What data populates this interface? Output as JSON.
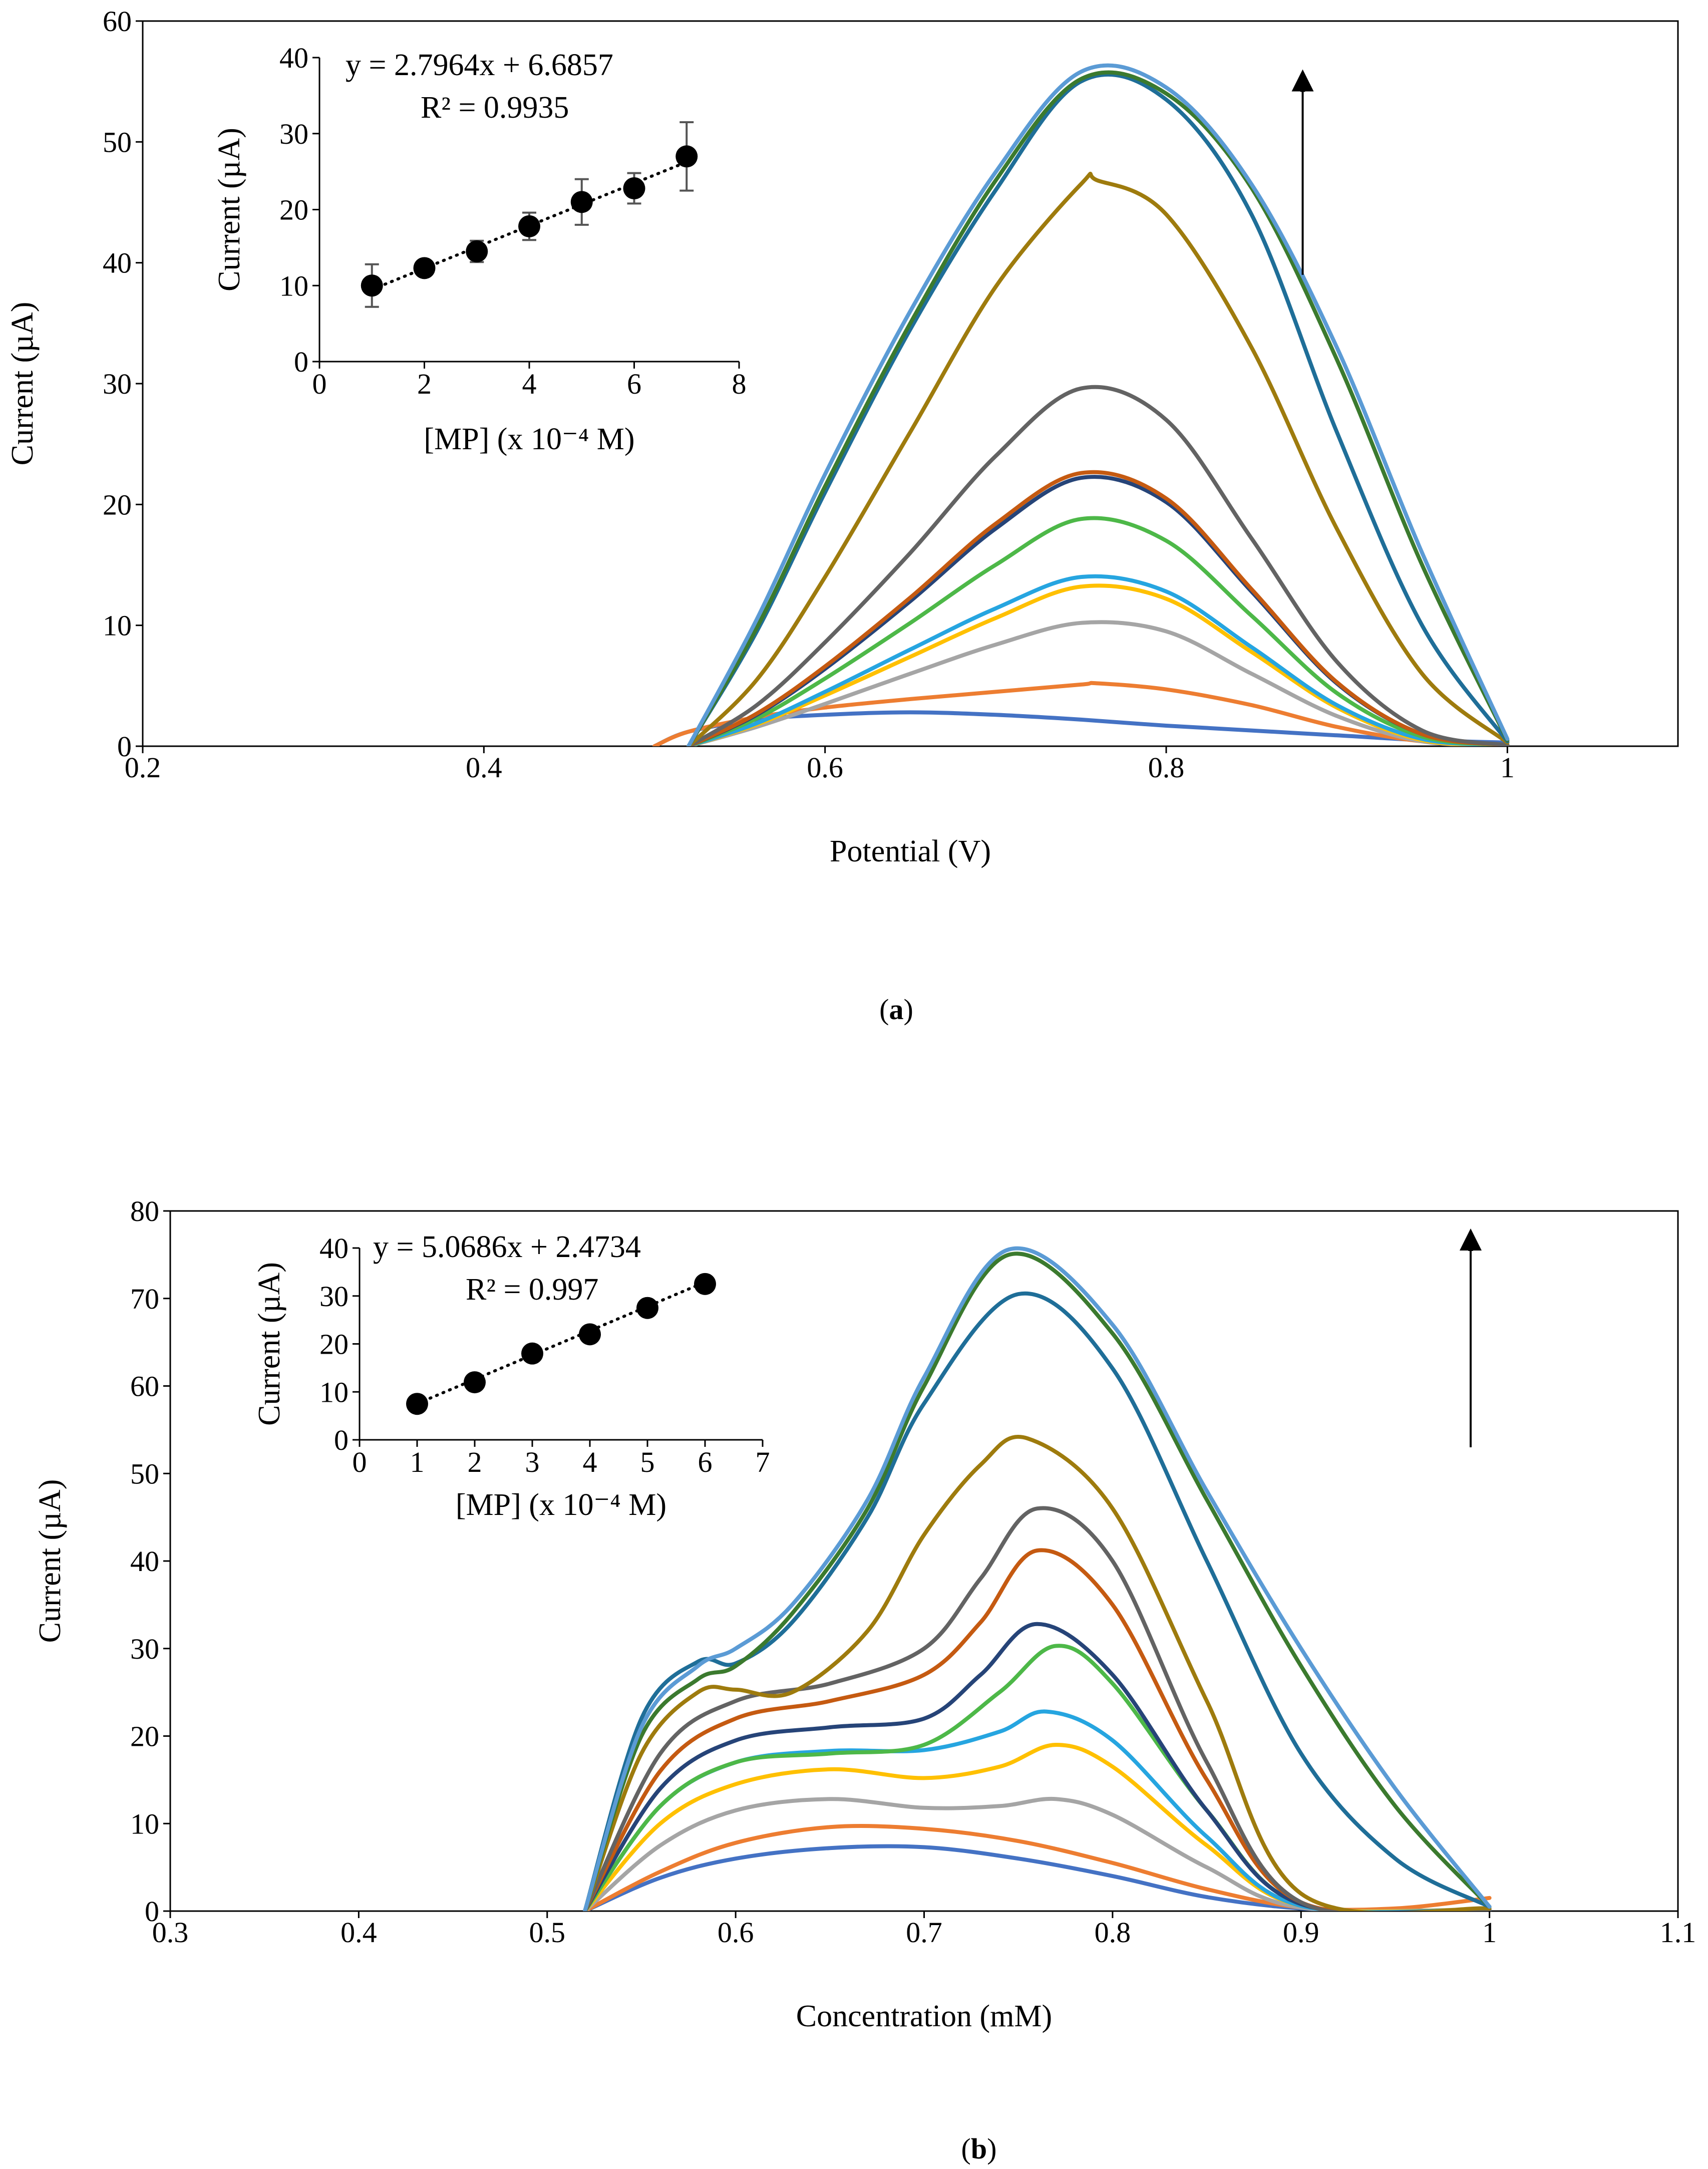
{
  "panels": [
    {
      "id": "a",
      "label_open": "(",
      "label": "a",
      "label_close": ")",
      "main": {
        "xlabel": "Potential (V)",
        "ylabel": "Current (µA)",
        "xlim": [
          0.2,
          1.1
        ],
        "ylim": [
          0,
          60
        ],
        "xticks": [
          "0.2",
          "0.4",
          "0.6",
          "0.8",
          "1"
        ],
        "yticks": [
          "0",
          "10",
          "20",
          "30",
          "40",
          "50",
          "60"
        ],
        "arrow": {
          "x": 0.88,
          "y_from": 39,
          "y_to": 56
        }
      },
      "inset": {
        "xlabel": "[MP] (x 10⁻⁴ M)",
        "ylabel": "Current (µA)",
        "xlim": [
          0,
          8
        ],
        "ylim": [
          0,
          40
        ],
        "xticks": [
          "0",
          "2",
          "4",
          "6",
          "8"
        ],
        "yticks": [
          "0",
          "10",
          "20",
          "30",
          "40"
        ],
        "equation": "y = 2.7964x + 6.6857",
        "r2": "R² = 0.9935"
      }
    },
    {
      "id": "b",
      "label_open": "(",
      "label": "b",
      "label_close": ")",
      "main": {
        "xlabel": "Concentration (mM)",
        "ylabel": "Current (µA)",
        "xlim": [
          0.3,
          1.1
        ],
        "ylim": [
          0,
          80
        ],
        "xticks": [
          "0.3",
          "0.4",
          "0.5",
          "0.6",
          "0.7",
          "0.8",
          "0.9",
          "1",
          "1.1"
        ],
        "yticks": [
          "0",
          "10",
          "20",
          "30",
          "40",
          "50",
          "60",
          "70",
          "80"
        ],
        "arrow": {
          "x": 0.99,
          "y_from": 53,
          "y_to": 78
        }
      },
      "inset": {
        "xlabel": "[MP] (x 10⁻⁴ M)",
        "ylabel": "Current (µA)",
        "xlim": [
          0,
          7
        ],
        "ylim": [
          0,
          40
        ],
        "xticks": [
          "0",
          "1",
          "2",
          "3",
          "4",
          "5",
          "6",
          "7"
        ],
        "yticks": [
          "0",
          "10",
          "20",
          "30",
          "40"
        ],
        "equation": "y = 5.0686x + 2.4734",
        "r2": "R² = 0.997"
      }
    }
  ],
  "chart_data": [
    {
      "type": "line",
      "panel": "a",
      "xlabel": "Potential (V)",
      "ylabel": "Current (µA)",
      "xlim": [
        0.2,
        1.1
      ],
      "ylim": [
        0,
        60
      ],
      "grid": false,
      "series": [
        {
          "color": "#4472c4",
          "x": [
            0.5,
            0.52,
            0.56,
            0.6,
            0.65,
            0.7,
            0.75,
            0.8,
            0.85,
            0.9,
            0.95,
            1.0
          ],
          "y": [
            0,
            1.2,
            2.2,
            2.6,
            2.8,
            2.6,
            2.2,
            1.7,
            1.3,
            0.9,
            0.5,
            0.3
          ]
        },
        {
          "color": "#ed7d31",
          "x": [
            0.5,
            0.52,
            0.56,
            0.6,
            0.65,
            0.7,
            0.75,
            0.76,
            0.8,
            0.85,
            0.9,
            0.95,
            1.0
          ],
          "y": [
            0,
            1.2,
            2.4,
            3.2,
            3.9,
            4.5,
            5.1,
            5.2,
            4.7,
            3.4,
            1.6,
            0.4,
            0.1
          ]
        },
        {
          "color": "#a5a5a5",
          "x": [
            0.52,
            0.56,
            0.6,
            0.65,
            0.7,
            0.75,
            0.8,
            0.85,
            0.9,
            0.95,
            1.0
          ],
          "y": [
            0,
            1.6,
            3.5,
            6.0,
            8.4,
            10.2,
            9.5,
            6.0,
            2.5,
            0.4,
            0.1
          ]
        },
        {
          "color": "#ffc000",
          "x": [
            0.52,
            0.56,
            0.6,
            0.65,
            0.7,
            0.75,
            0.8,
            0.85,
            0.9,
            0.95,
            1.0
          ],
          "y": [
            0,
            1.8,
            4.2,
            7.4,
            10.6,
            13.2,
            12.2,
            7.8,
            3.2,
            0.5,
            0.1
          ]
        },
        {
          "color": "#26a5e0",
          "x": [
            0.52,
            0.56,
            0.6,
            0.65,
            0.7,
            0.75,
            0.8,
            0.85,
            0.9,
            0.95,
            1.0
          ],
          "y": [
            0,
            1.9,
            4.5,
            8.0,
            11.4,
            14.0,
            12.8,
            8.2,
            3.4,
            0.6,
            0.1
          ]
        },
        {
          "color": "#4db848",
          "x": [
            0.52,
            0.56,
            0.6,
            0.65,
            0.7,
            0.75,
            0.8,
            0.85,
            0.9,
            0.95,
            1.0
          ],
          "y": [
            0,
            2.3,
            5.6,
            10.2,
            15.0,
            18.8,
            17.0,
            10.8,
            4.4,
            0.8,
            0.1
          ]
        },
        {
          "color": "#264478",
          "x": [
            0.52,
            0.56,
            0.6,
            0.65,
            0.7,
            0.75,
            0.8,
            0.85,
            0.9,
            0.95,
            1.0
          ],
          "y": [
            0,
            2.6,
            6.4,
            12.0,
            18.0,
            22.2,
            20.2,
            12.8,
            5.2,
            1.0,
            0.1
          ]
        },
        {
          "color": "#c55a11",
          "x": [
            0.52,
            0.56,
            0.6,
            0.65,
            0.7,
            0.75,
            0.8,
            0.85,
            0.9,
            0.95,
            1.0
          ],
          "y": [
            0,
            2.7,
            6.6,
            12.3,
            18.4,
            22.6,
            20.5,
            13.0,
            5.3,
            1.0,
            0.1
          ]
        },
        {
          "color": "#636363",
          "x": [
            0.52,
            0.56,
            0.6,
            0.65,
            0.7,
            0.75,
            0.8,
            0.85,
            0.9,
            0.95,
            1.0
          ],
          "y": [
            0,
            3.4,
            8.6,
            16.0,
            24.0,
            29.6,
            27.0,
            17.2,
            7.0,
            1.3,
            0.1
          ]
        },
        {
          "color": "#9e7b0d",
          "x": [
            0.52,
            0.56,
            0.6,
            0.65,
            0.7,
            0.75,
            0.76,
            0.8,
            0.85,
            0.9,
            0.95,
            1.0
          ],
          "y": [
            0,
            5.5,
            14.0,
            26.0,
            38.0,
            46.5,
            46.8,
            44.0,
            33.0,
            18.0,
            6.0,
            0.3
          ]
        },
        {
          "color": "#1f6e98",
          "x": [
            0.52,
            0.56,
            0.6,
            0.65,
            0.7,
            0.75,
            0.8,
            0.85,
            0.9,
            0.95,
            1.0
          ],
          "y": [
            0,
            9.5,
            21.0,
            34.5,
            46.0,
            55.0,
            53.5,
            44.0,
            26.0,
            10.0,
            0.4
          ]
        },
        {
          "color": "#3b7a2e",
          "x": [
            0.52,
            0.56,
            0.6,
            0.65,
            0.7,
            0.75,
            0.8,
            0.85,
            0.9,
            0.95,
            1.0
          ],
          "y": [
            0,
            9.8,
            21.5,
            35.0,
            46.8,
            55.2,
            54.0,
            46.2,
            32.0,
            15.0,
            0.5
          ]
        },
        {
          "color": "#5b9bd5",
          "x": [
            0.52,
            0.56,
            0.6,
            0.65,
            0.7,
            0.75,
            0.8,
            0.85,
            0.9,
            0.95,
            1.0
          ],
          "y": [
            0,
            10.5,
            22.5,
            36.0,
            47.5,
            55.8,
            54.5,
            46.5,
            33.0,
            16.0,
            0.6
          ]
        }
      ]
    },
    {
      "type": "scatter",
      "panel": "a-inset",
      "xlabel": "[MP] (x 10⁻⁴ M)",
      "ylabel": "Current (µA)",
      "xlim": [
        0,
        8
      ],
      "ylim": [
        0,
        40
      ],
      "grid": false,
      "x": [
        1,
        2,
        3,
        4,
        5,
        6,
        7
      ],
      "y": [
        10.0,
        12.3,
        14.5,
        17.8,
        21.0,
        22.8,
        27.0
      ],
      "error": [
        2.8,
        0.9,
        1.4,
        1.8,
        3.0,
        2.0,
        4.5
      ],
      "trendline": {
        "slope": 2.7964,
        "intercept": 6.6857,
        "style": "dotted"
      }
    },
    {
      "type": "line",
      "panel": "b",
      "xlabel": "Concentration (mM)",
      "ylabel": "Current (µA)",
      "xlim": [
        0.3,
        1.1
      ],
      "ylim": [
        0,
        80
      ],
      "grid": false,
      "series": [
        {
          "color": "#4472c4",
          "x": [
            0.52,
            0.56,
            0.6,
            0.65,
            0.7,
            0.75,
            0.8,
            0.85,
            0.9,
            0.95,
            1.0
          ],
          "y": [
            0,
            3.8,
            6.0,
            7.2,
            7.3,
            6.0,
            4.0,
            1.6,
            0.3,
            0.1,
            0.0
          ]
        },
        {
          "color": "#ed7d31",
          "x": [
            0.52,
            0.56,
            0.6,
            0.65,
            0.7,
            0.75,
            0.8,
            0.85,
            0.9,
            0.95,
            1.0
          ],
          "y": [
            0,
            4.5,
            7.8,
            9.6,
            9.4,
            8.0,
            5.5,
            2.5,
            0.4,
            0.3,
            1.5
          ]
        },
        {
          "color": "#a5a5a5",
          "x": [
            0.52,
            0.56,
            0.6,
            0.65,
            0.7,
            0.74,
            0.77,
            0.8,
            0.85,
            0.9,
            1.0
          ],
          "y": [
            0,
            7.5,
            11.5,
            12.8,
            11.8,
            12.0,
            12.8,
            11.0,
            5.0,
            0.4,
            0.2
          ]
        },
        {
          "color": "#ffc000",
          "x": [
            0.52,
            0.56,
            0.6,
            0.65,
            0.7,
            0.74,
            0.77,
            0.8,
            0.85,
            0.9,
            1.0
          ],
          "y": [
            0,
            10.0,
            14.5,
            16.2,
            15.2,
            16.5,
            19.0,
            16.5,
            7.5,
            0.6,
            0.2
          ]
        },
        {
          "color": "#26a5e0",
          "x": [
            0.52,
            0.56,
            0.6,
            0.65,
            0.7,
            0.74,
            0.765,
            0.8,
            0.85,
            0.9,
            1.0
          ],
          "y": [
            0,
            12.0,
            17.0,
            18.3,
            18.4,
            20.5,
            22.8,
            19.5,
            8.5,
            0.6,
            0.2
          ]
        },
        {
          "color": "#4db848",
          "x": [
            0.52,
            0.56,
            0.6,
            0.65,
            0.7,
            0.74,
            0.77,
            0.8,
            0.85,
            0.9,
            1.0
          ],
          "y": [
            0,
            12.0,
            17.0,
            18.0,
            19.0,
            25.0,
            30.3,
            26.0,
            11.5,
            0.8,
            0.2
          ]
        },
        {
          "color": "#264478",
          "x": [
            0.52,
            0.56,
            0.6,
            0.65,
            0.7,
            0.73,
            0.76,
            0.8,
            0.85,
            0.9,
            1.0
          ],
          "y": [
            0,
            14.0,
            19.5,
            21.0,
            22.0,
            27.0,
            32.8,
            27.0,
            11.5,
            0.8,
            0.2
          ]
        },
        {
          "color": "#c55a11",
          "x": [
            0.52,
            0.56,
            0.6,
            0.65,
            0.7,
            0.73,
            0.76,
            0.8,
            0.85,
            0.9,
            1.0
          ],
          "y": [
            0,
            16.0,
            22.0,
            24.0,
            27.0,
            33.0,
            41.2,
            35.0,
            15.0,
            1.0,
            0.2
          ]
        },
        {
          "color": "#636363",
          "x": [
            0.52,
            0.56,
            0.6,
            0.65,
            0.7,
            0.73,
            0.76,
            0.8,
            0.85,
            0.9,
            1.0
          ],
          "y": [
            0,
            18.0,
            24.0,
            26.0,
            30.0,
            38.0,
            46.0,
            40.0,
            17.0,
            1.0,
            0.2
          ]
        },
        {
          "color": "#9e7b0d",
          "x": [
            0.52,
            0.55,
            0.58,
            0.6,
            0.63,
            0.67,
            0.7,
            0.73,
            0.755,
            0.8,
            0.85,
            0.9,
            1.0
          ],
          "y": [
            0,
            18.0,
            25.0,
            25.3,
            25.0,
            32.0,
            43.0,
            51.0,
            54.0,
            46.0,
            24.0,
            2.0,
            0.3
          ]
        },
        {
          "color": "#1f6e98",
          "x": [
            0.52,
            0.55,
            0.58,
            0.6,
            0.63,
            0.67,
            0.7,
            0.75,
            0.8,
            0.85,
            0.9,
            0.95,
            1.0
          ],
          "y": [
            0,
            22.0,
            28.5,
            28.3,
            33.0,
            45.0,
            58.0,
            70.5,
            62.0,
            40.0,
            18.0,
            6.0,
            0.5
          ]
        },
        {
          "color": "#3b7a2e",
          "x": [
            0.52,
            0.55,
            0.58,
            0.6,
            0.63,
            0.67,
            0.7,
            0.745,
            0.8,
            0.85,
            0.9,
            0.95,
            1.0
          ],
          "y": [
            0,
            20.0,
            26.5,
            28.0,
            34.0,
            46.0,
            60.0,
            75.0,
            66.0,
            47.0,
            28.0,
            12.0,
            0.5
          ]
        },
        {
          "color": "#5b9bd5",
          "x": [
            0.52,
            0.55,
            0.58,
            0.6,
            0.63,
            0.67,
            0.7,
            0.745,
            0.8,
            0.85,
            0.9,
            0.95,
            1.0
          ],
          "y": [
            0,
            21.0,
            28.0,
            30.0,
            35.0,
            47.0,
            61.0,
            75.6,
            67.0,
            48.0,
            30.0,
            14.0,
            0.5
          ]
        }
      ]
    },
    {
      "type": "scatter",
      "panel": "b-inset",
      "xlabel": "[MP] (x 10⁻⁴ M)",
      "ylabel": "Current (µA)",
      "xlim": [
        0,
        7
      ],
      "ylim": [
        0,
        40
      ],
      "grid": false,
      "x": [
        1,
        2,
        3,
        4,
        5,
        6
      ],
      "y": [
        7.5,
        12.0,
        18.0,
        22.0,
        27.5,
        32.5
      ],
      "trendline": {
        "slope": 5.0686,
        "intercept": 2.4734,
        "style": "dotted"
      }
    }
  ]
}
